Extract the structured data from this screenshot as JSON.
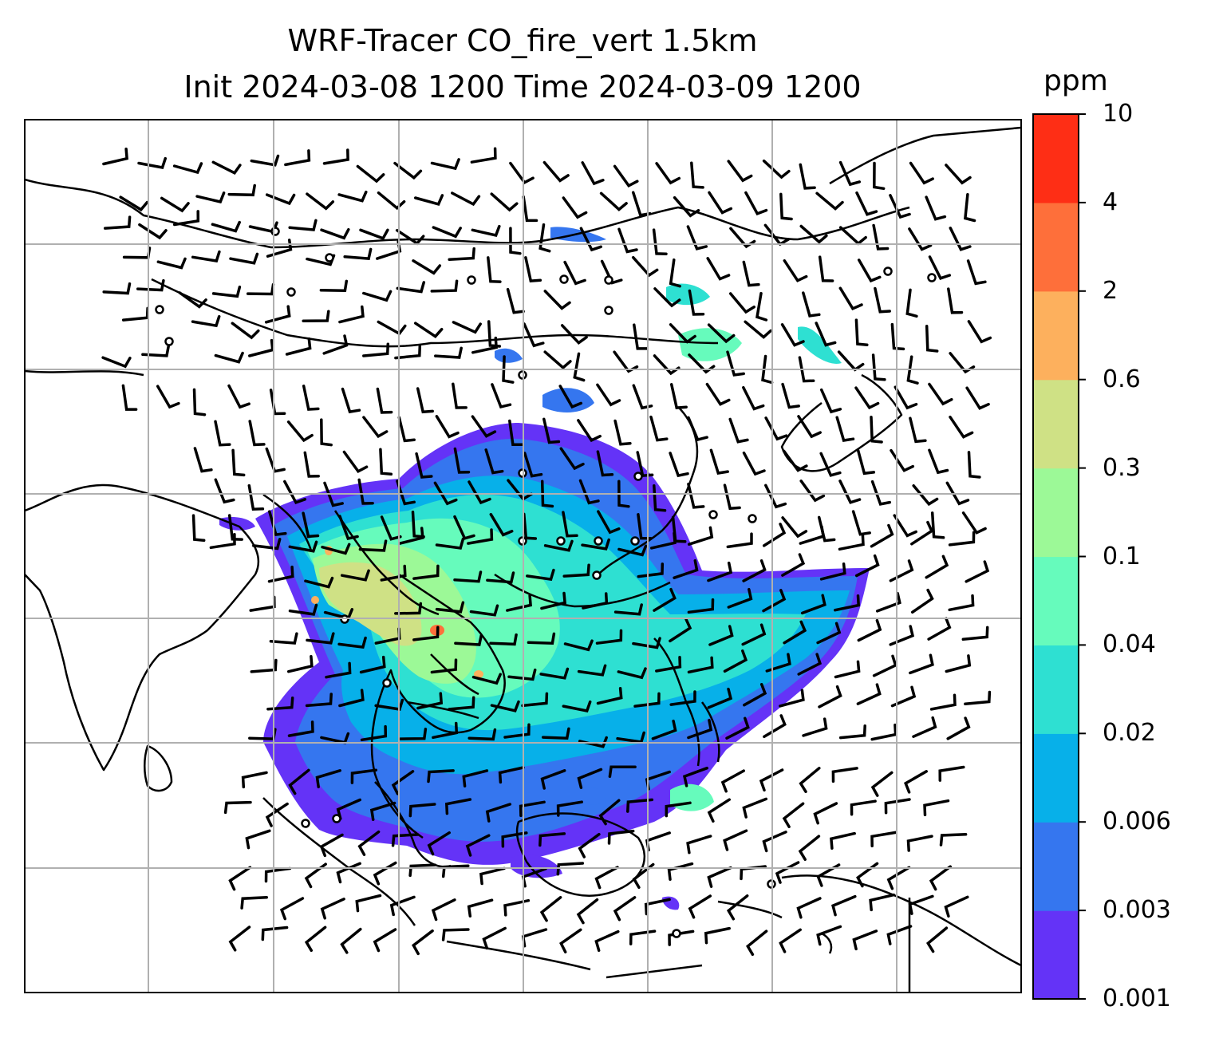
{
  "title": {
    "line1": "WRF-Tracer CO_fire_vert 1.5km",
    "line2": "Init 2024-03-08 1200 Time 2024-03-09 1200"
  },
  "colorbar": {
    "unit": "ppm",
    "ticks": [
      "0.001",
      "0.003",
      "0.006",
      "0.02",
      "0.04",
      "0.1",
      "0.3",
      "0.6",
      "2",
      "4",
      "10"
    ],
    "colors": [
      "#6433f7",
      "#3576ef",
      "#07b0e9",
      "#2ee0d2",
      "#66fbbc",
      "#9cf997",
      "#cfe185",
      "#fdb05d",
      "#fe6f3a",
      "#fe2e15"
    ]
  },
  "map": {
    "background": "#ffffff",
    "coastline_color": "#000000",
    "gridline_color": "#b0b0b0",
    "wind_barb_color": "#000000"
  }
}
